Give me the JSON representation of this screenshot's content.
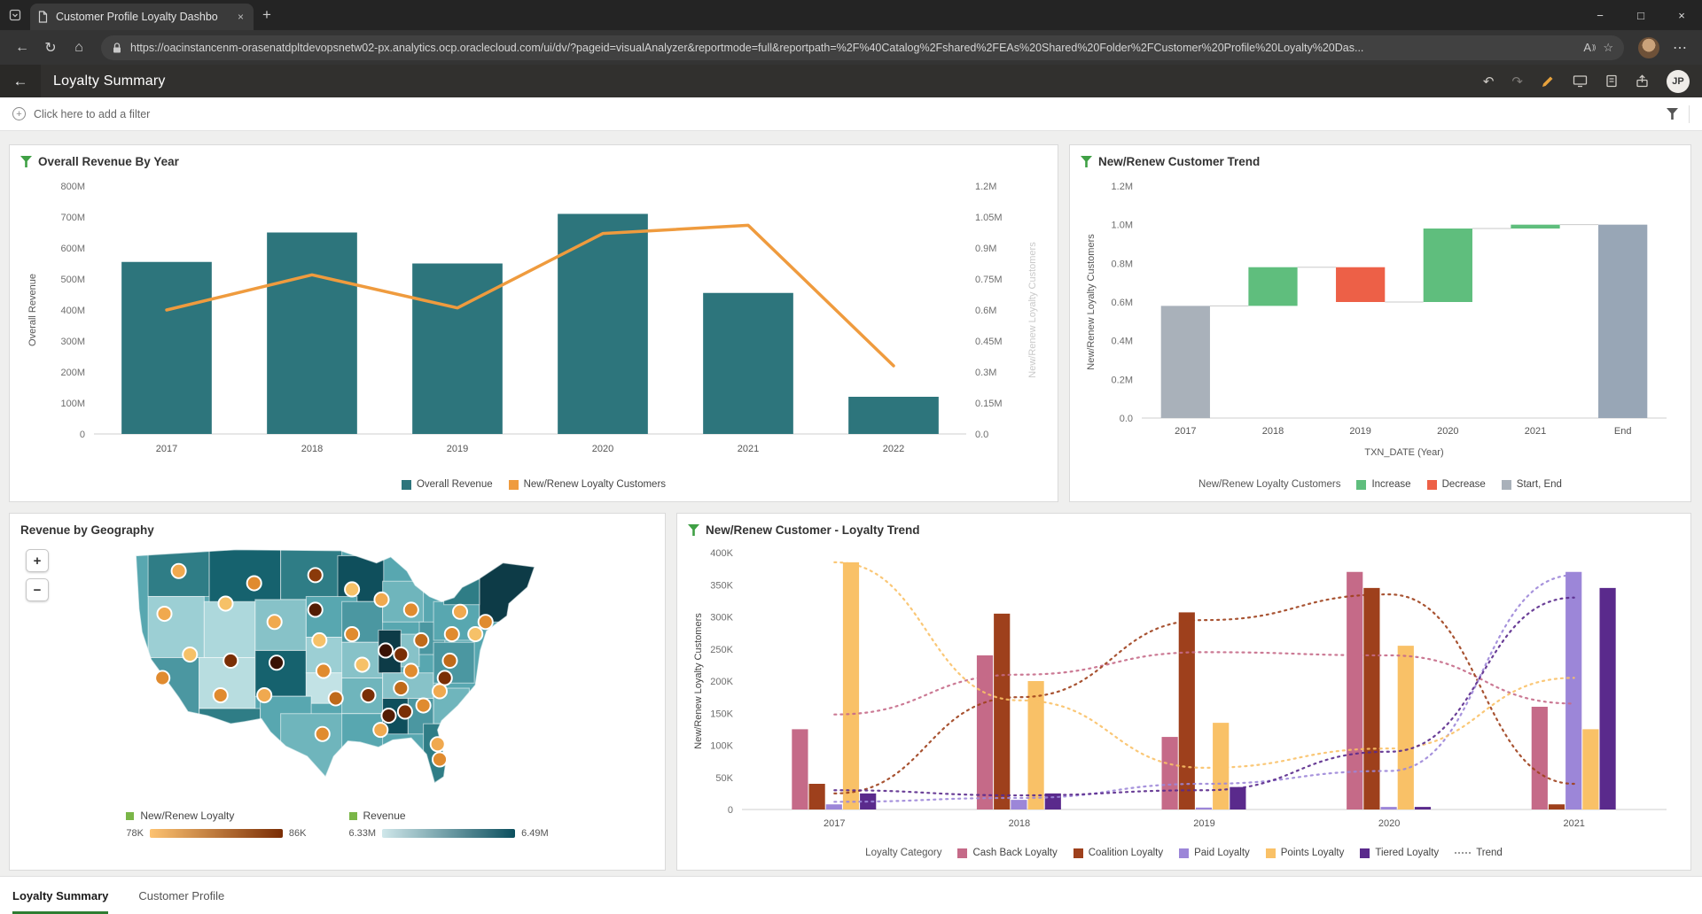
{
  "browser": {
    "tab_title": "Customer Profile Loyalty Dashbo",
    "tab_close": "×",
    "new_tab": "+",
    "url": "https://oacinstancenm-orasenatdpltdevopsnetw02-px.analytics.ocp.oraclecloud.com/ui/dv/?pageid=visualAnalyzer&reportmode=full&reportpath=%2F%40Catalog%2Fshared%2FEAs%20Shared%20Folder%2FCustomer%20Profile%20Loyalty%20Das...",
    "window_controls": {
      "minimize": "−",
      "maximize": "□",
      "close": "×"
    },
    "read_aloud": "A",
    "read_aloud_waves": "))"
  },
  "icons": {
    "back": "←",
    "refresh": "↻",
    "home": "⌂",
    "star": "☆",
    "ellipsis": "⋯",
    "undo": "↶",
    "redo": "↷"
  },
  "app_header": {
    "title": "Loyalty Summary",
    "avatar_initials": "JP"
  },
  "filter_bar": {
    "add_filter_label": "Click here to add a filter"
  },
  "footer": {
    "tabs": [
      {
        "label": "Loyalty Summary",
        "active": true
      },
      {
        "label": "Customer Profile",
        "active": false
      }
    ]
  },
  "chart_data": [
    {
      "id": "overall_revenue_by_year",
      "type": "bar",
      "title": "Overall Revenue By Year",
      "categories": [
        "2017",
        "2018",
        "2019",
        "2020",
        "2021",
        "2022"
      ],
      "bar_series": {
        "name": "Overall Revenue",
        "color": "#2d757c",
        "values_m": [
          555,
          650,
          550,
          710,
          455,
          120
        ]
      },
      "line_series": {
        "name": "New/Renew Loyalty Customers",
        "color": "#ef9b3e",
        "values_m": [
          0.6,
          0.77,
          0.61,
          0.97,
          1.01,
          0.33
        ]
      },
      "left_axis": {
        "label": "Overall Revenue",
        "max": 800,
        "ticks": [
          "0",
          "100M",
          "200M",
          "300M",
          "400M",
          "500M",
          "600M",
          "700M",
          "800M"
        ]
      },
      "right_axis": {
        "label": "New/Renew Loyalty Customers",
        "max": 1.2,
        "ticks": [
          "0.0",
          "0.15M",
          "0.3M",
          "0.45M",
          "0.6M",
          "0.75M",
          "0.9M",
          "1.05M",
          "1.2M"
        ]
      },
      "grid": false,
      "legend_position": "bottom"
    },
    {
      "id": "new_renew_customer_trend",
      "type": "bar",
      "title": "New/Renew Customer Trend",
      "subtype": "waterfall",
      "categories": [
        "2017",
        "2018",
        "2019",
        "2020",
        "2021",
        "End"
      ],
      "steps": [
        {
          "label": "2017",
          "from": 0,
          "to": 0.58,
          "kind": "start"
        },
        {
          "label": "2018",
          "from": 0.58,
          "to": 0.78,
          "kind": "increase"
        },
        {
          "label": "2019",
          "from": 0.78,
          "to": 0.6,
          "kind": "decrease"
        },
        {
          "label": "2020",
          "from": 0.6,
          "to": 0.98,
          "kind": "increase"
        },
        {
          "label": "2021",
          "from": 0.98,
          "to": 1.0,
          "kind": "increase"
        },
        {
          "label": "End",
          "from": 0,
          "to": 1.0,
          "kind": "end"
        }
      ],
      "colors": {
        "start": "#a9b1ba",
        "end": "#98a6b6",
        "increase": "#5fbe7d",
        "decrease": "#ed6047"
      },
      "y_axis": {
        "label": "New/Renew Loyalty Customers",
        "max": 1.2,
        "ticks": [
          "0.0",
          "0.2M",
          "0.4M",
          "0.6M",
          "0.8M",
          "1.0M",
          "1.2M"
        ]
      },
      "x_axis_label": "TXN_DATE (Year)",
      "legend": {
        "series_label": "New/Renew Loyalty Customers",
        "items": [
          {
            "label": "Increase",
            "color": "#5fbe7d"
          },
          {
            "label": "Decrease",
            "color": "#ed6047"
          },
          {
            "label": "Start, End",
            "color": "#a9b1ba"
          }
        ]
      }
    },
    {
      "id": "revenue_by_geography",
      "type": "heatmap",
      "title": "Revenue by Geography",
      "zoom_controls": [
        "+",
        "−"
      ],
      "legends": [
        {
          "label": "New/Renew Loyalty",
          "min": "78K",
          "max": "86K",
          "gradient": [
            "#fdc271",
            "#7a2d05"
          ]
        },
        {
          "label": "Revenue",
          "min": "6.33M",
          "max": "6.49M",
          "gradient": [
            "#cfe7ea",
            "#0b4f5e"
          ]
        }
      ],
      "map": {
        "patches": [
          [
            14,
            10,
            60,
            45,
            "#2f7d86"
          ],
          [
            74,
            8,
            70,
            55,
            "#16626e"
          ],
          [
            144,
            8,
            60,
            50,
            "#2f7d86"
          ],
          [
            200,
            15,
            45,
            45,
            "#0f4f5c"
          ],
          [
            14,
            55,
            55,
            60,
            "#9ccfd4"
          ],
          [
            69,
            60,
            50,
            55,
            "#add8dc"
          ],
          [
            119,
            58,
            50,
            50,
            "#87c2c8"
          ],
          [
            169,
            55,
            50,
            40,
            "#58a7b0"
          ],
          [
            14,
            115,
            50,
            70,
            "#4b97a1"
          ],
          [
            64,
            115,
            55,
            50,
            "#b8dde0"
          ],
          [
            119,
            108,
            50,
            45,
            "#16626e"
          ],
          [
            169,
            95,
            55,
            35,
            "#9ccfd4"
          ],
          [
            169,
            130,
            55,
            30,
            "#c2e2e5"
          ],
          [
            64,
            165,
            60,
            45,
            "#2f7d86"
          ],
          [
            124,
            153,
            50,
            45,
            "#58a7b0"
          ],
          [
            144,
            170,
            80,
            65,
            "#6fb5bc"
          ],
          [
            204,
            60,
            40,
            40,
            "#4b97a1"
          ],
          [
            244,
            40,
            40,
            40,
            "#6fb5bc"
          ],
          [
            204,
            100,
            40,
            35,
            "#87c2c8"
          ],
          [
            240,
            88,
            22,
            42,
            "#0d3b47"
          ],
          [
            262,
            92,
            18,
            32,
            "#87c2c8"
          ],
          [
            280,
            80,
            25,
            32,
            "#4b97a1"
          ],
          [
            204,
            135,
            40,
            35,
            "#6fb5bc"
          ],
          [
            204,
            170,
            40,
            40,
            "#58a7b0"
          ],
          [
            244,
            130,
            50,
            25,
            "#87c2c8"
          ],
          [
            244,
            155,
            25,
            35,
            "#0f4f5c"
          ],
          [
            269,
            155,
            25,
            35,
            "#4b97a1"
          ],
          [
            294,
            145,
            35,
            35,
            "#6fb5bc"
          ],
          [
            284,
            180,
            40,
            65,
            "#2f7d86"
          ],
          [
            294,
            100,
            40,
            40,
            "#4b97a1"
          ],
          [
            294,
            60,
            45,
            38,
            "#58a7b0"
          ],
          [
            339,
            20,
            55,
            60,
            "#0d3b47"
          ],
          [
            304,
            18,
            35,
            45,
            "#2f7d86"
          ]
        ],
        "dots": [
          [
            44,
            30,
            "#f0a94f"
          ],
          [
            118,
            42,
            "#e08b2f"
          ],
          [
            178,
            34,
            "#8a3a0a"
          ],
          [
            214,
            48,
            "#f6c168"
          ],
          [
            243,
            58,
            "#f0a94f"
          ],
          [
            272,
            68,
            "#e08b2f"
          ],
          [
            320,
            70,
            "#f0a94f"
          ],
          [
            345,
            80,
            "#e08b2f"
          ],
          [
            335,
            92,
            "#f6c168"
          ],
          [
            90,
            62,
            "#f6c168"
          ],
          [
            30,
            72,
            "#f0a94f"
          ],
          [
            55,
            112,
            "#f6c168"
          ],
          [
            28,
            135,
            "#e08b2f"
          ],
          [
            95,
            118,
            "#7a2f06"
          ],
          [
            138,
            80,
            "#f0a94f"
          ],
          [
            178,
            68,
            "#541d04"
          ],
          [
            182,
            98,
            "#f6c168"
          ],
          [
            140,
            120,
            "#3a1204"
          ],
          [
            186,
            128,
            "#e08b2f"
          ],
          [
            198,
            155,
            "#c06a1a"
          ],
          [
            185,
            190,
            "#e08b2f"
          ],
          [
            128,
            152,
            "#f0a94f"
          ],
          [
            85,
            152,
            "#e08b2f"
          ],
          [
            224,
            122,
            "#f6c168"
          ],
          [
            230,
            152,
            "#7a2f06"
          ],
          [
            242,
            186,
            "#f0a94f"
          ],
          [
            214,
            92,
            "#e08b2f"
          ],
          [
            247,
            108,
            "#3a1204"
          ],
          [
            262,
            112,
            "#7a2f06"
          ],
          [
            282,
            98,
            "#c06a1a"
          ],
          [
            272,
            128,
            "#e08b2f"
          ],
          [
            262,
            145,
            "#c06a1a"
          ],
          [
            250,
            172,
            "#541d04"
          ],
          [
            266,
            168,
            "#7a2f06"
          ],
          [
            284,
            162,
            "#e08b2f"
          ],
          [
            300,
            148,
            "#f0a94f"
          ],
          [
            305,
            135,
            "#7a2f06"
          ],
          [
            310,
            118,
            "#c06a1a"
          ],
          [
            312,
            92,
            "#e08b2f"
          ],
          [
            298,
            200,
            "#f0a94f"
          ],
          [
            300,
            215,
            "#e08b2f"
          ]
        ]
      }
    },
    {
      "id": "new_renew_customer_loyalty_trend",
      "type": "bar",
      "title": "New/Renew Customer - Loyalty Trend",
      "categories": [
        "2017",
        "2018",
        "2019",
        "2020",
        "2021"
      ],
      "series": [
        {
          "name": "Cash Back Loyalty",
          "color": "#c56a88",
          "values_k": [
            125,
            240,
            113,
            370,
            160
          ],
          "trend_k": [
            148,
            210,
            245,
            240,
            165
          ]
        },
        {
          "name": "Coalition Loyalty",
          "color": "#9e401c",
          "values_k": [
            40,
            305,
            307,
            345,
            8
          ],
          "trend_k": [
            25,
            175,
            295,
            335,
            40
          ]
        },
        {
          "name": "Paid Loyalty",
          "color": "#9c86d8",
          "values_k": [
            8,
            15,
            3,
            4,
            370
          ],
          "trend_k": [
            12,
            18,
            40,
            60,
            365
          ]
        },
        {
          "name": "Points Loyalty",
          "color": "#f9c167",
          "values_k": [
            385,
            200,
            135,
            255,
            125
          ],
          "trend_k": [
            385,
            170,
            65,
            95,
            205
          ]
        },
        {
          "name": "Tiered Loyalty",
          "color": "#5a2a8c",
          "values_k": [
            25,
            25,
            35,
            4,
            345
          ],
          "trend_k": [
            30,
            22,
            30,
            90,
            330
          ]
        }
      ],
      "y_axis": {
        "label": "New/Renew Loyalty Customers",
        "max": 400,
        "ticks": [
          "0",
          "50K",
          "100K",
          "150K",
          "200K",
          "250K",
          "300K",
          "350K",
          "400K"
        ]
      },
      "legend_title": "Loyalty Category",
      "trend_label": "Trend",
      "grid": false,
      "legend_position": "bottom"
    }
  ]
}
